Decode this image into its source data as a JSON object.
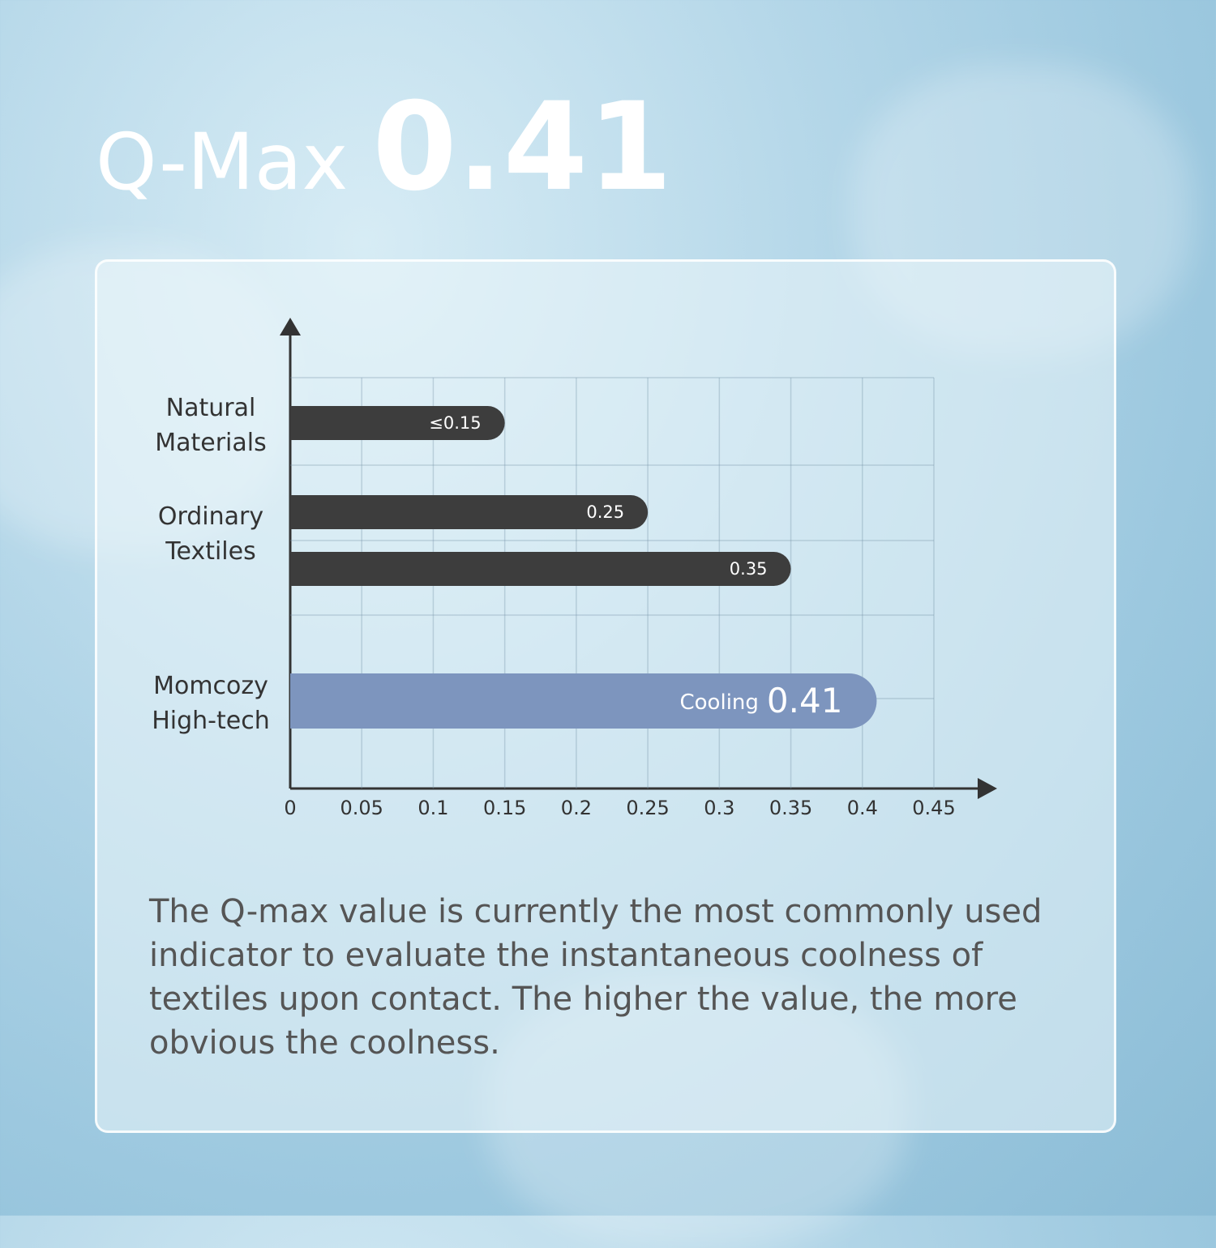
{
  "chart_data": {
    "type": "hbar",
    "title": "Q-Max",
    "title_highlight": "0.41",
    "categories": [
      "Natural Materials",
      "Ordinary Textiles",
      null,
      "Momcozy High-tech"
    ],
    "values": [
      0.15,
      0.25,
      0.35,
      0.41
    ],
    "value_labels": [
      "≤0.15",
      "0.25",
      "0.35",
      "0.41"
    ],
    "highlight_prefix": "Cooling",
    "colors": [
      "#3d3d3d",
      "#3d3d3d",
      "#3d3d3d",
      "#7d95be"
    ],
    "xlim": [
      0,
      0.45
    ],
    "xticks": [
      0,
      0.05,
      0.1,
      0.15,
      0.2,
      0.25,
      0.3,
      0.35,
      0.4,
      0.45
    ],
    "grid": true,
    "description": "The Q-max value is currently the most commonly used indicator to evaluate the instantaneous coolness of textiles upon contact. The higher the value, the more obvious the coolness."
  }
}
